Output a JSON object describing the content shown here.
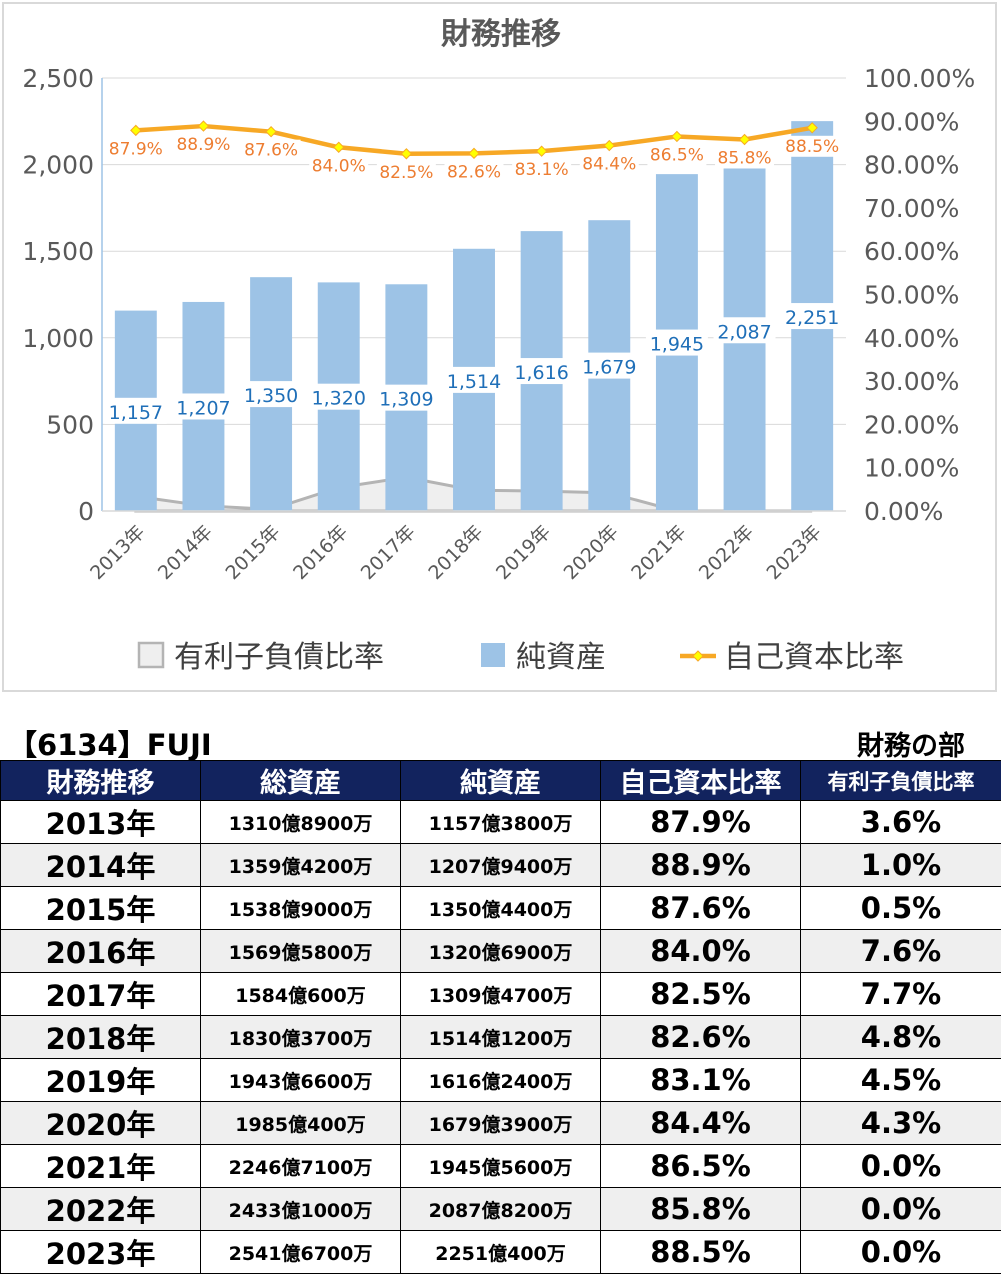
{
  "chart_data": {
    "type": "bar",
    "title": "財務推移",
    "categories": [
      "2013年",
      "2014年",
      "2015年",
      "2016年",
      "2017年",
      "2018年",
      "2019年",
      "2020年",
      "2021年",
      "2022年",
      "2023年"
    ],
    "series": [
      {
        "name": "有利子負債比率",
        "kind": "area",
        "axis": "left",
        "values": [
          85,
          30,
          10,
          135,
          195,
          120,
          115,
          105,
          0,
          0,
          0
        ]
      },
      {
        "name": "純資産",
        "kind": "bar",
        "axis": "left",
        "values": [
          1157,
          1207,
          1350,
          1320,
          1309,
          1514,
          1616,
          1679,
          1945,
          2087,
          2251
        ],
        "labels": [
          "1,157",
          "1,207",
          "1,350",
          "1,320",
          "1,309",
          "1,514",
          "1,616",
          "1,679",
          "1,945",
          "2,087",
          "2,251"
        ]
      },
      {
        "name": "自己資本比率",
        "kind": "line",
        "axis": "right",
        "values": [
          87.9,
          88.9,
          87.6,
          84.0,
          82.5,
          82.6,
          83.1,
          84.4,
          86.5,
          85.8,
          88.5
        ],
        "labels": [
          "87.9%",
          "88.9%",
          "87.6%",
          "84.0%",
          "82.5%",
          "82.6%",
          "83.1%",
          "84.4%",
          "86.5%",
          "85.8%",
          "88.5%"
        ]
      }
    ],
    "y_left": {
      "range": [
        0,
        2500
      ],
      "ticks": [
        "0",
        "500",
        "1,000",
        "1,500",
        "2,000",
        "2,500"
      ]
    },
    "y_right": {
      "range": [
        0,
        100
      ],
      "ticks": [
        "0.00%",
        "10.00%",
        "20.00%",
        "30.00%",
        "40.00%",
        "50.00%",
        "60.00%",
        "70.00%",
        "80.00%",
        "90.00%",
        "100.00%"
      ]
    },
    "legend_position": "bottom",
    "grid": true,
    "colors": {
      "bar": "#9dc3e6",
      "bar_label": "#1f6fb8",
      "line": "#f7a825",
      "line_label": "#ed7d31",
      "marker": "#ffff00",
      "area_fill": "#efefef",
      "area_stroke": "#b4b4b4",
      "grid": "#d9d9d9",
      "axis_text": "#595959"
    }
  },
  "stock_title": "【6134】FUJI",
  "section_title": "財務の部",
  "table": {
    "headers": [
      "財務推移",
      "総資産",
      "純資産",
      "自己資本比率",
      "有利子負債比率"
    ],
    "rows": [
      {
        "year": "2013年",
        "total": "1310億8900万",
        "net": "1157億3800万",
        "equity": "87.9%",
        "debt": "3.6%"
      },
      {
        "year": "2014年",
        "total": "1359億4200万",
        "net": "1207億9400万",
        "equity": "88.9%",
        "debt": "1.0%"
      },
      {
        "year": "2015年",
        "total": "1538億9000万",
        "net": "1350億4400万",
        "equity": "87.6%",
        "debt": "0.5%"
      },
      {
        "year": "2016年",
        "total": "1569億5800万",
        "net": "1320億6900万",
        "equity": "84.0%",
        "debt": "7.6%"
      },
      {
        "year": "2017年",
        "total": "1584億600万",
        "net": "1309億4700万",
        "equity": "82.5%",
        "debt": "7.7%"
      },
      {
        "year": "2018年",
        "total": "1830億3700万",
        "net": "1514億1200万",
        "equity": "82.6%",
        "debt": "4.8%"
      },
      {
        "year": "2019年",
        "total": "1943億6600万",
        "net": "1616億2400万",
        "equity": "83.1%",
        "debt": "4.5%"
      },
      {
        "year": "2020年",
        "total": "1985億400万",
        "net": "1679億3900万",
        "equity": "84.4%",
        "debt": "4.3%"
      },
      {
        "year": "2021年",
        "total": "2246億7100万",
        "net": "1945億5600万",
        "equity": "86.5%",
        "debt": "0.0%"
      },
      {
        "year": "2022年",
        "total": "2433億1000万",
        "net": "2087億8200万",
        "equity": "85.8%",
        "debt": "0.0%"
      },
      {
        "year": "2023年",
        "total": "2541億6700万",
        "net": "2251億400万",
        "equity": "88.5%",
        "debt": "0.0%"
      }
    ]
  }
}
